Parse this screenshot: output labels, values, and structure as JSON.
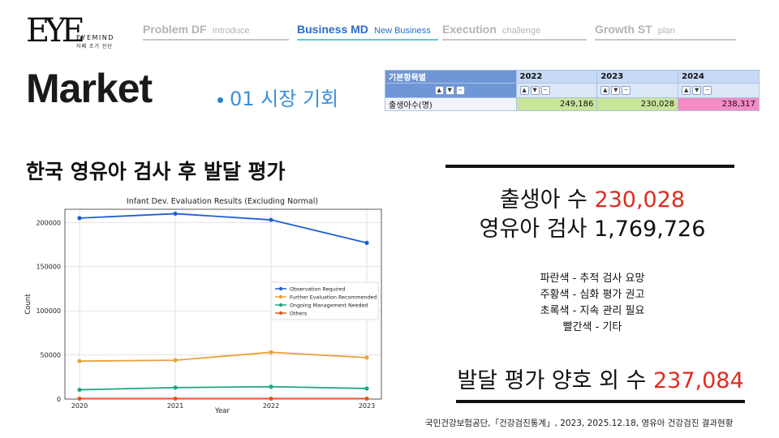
{
  "logo": {
    "mark": "EYE",
    "english": "EYEMIND",
    "korean": "자폐 조기 진단"
  },
  "nav": {
    "tabs": [
      {
        "main": "Problem DF",
        "sub": "Introduce",
        "active": false
      },
      {
        "main": "Business MD",
        "sub": "New Business",
        "active": true
      },
      {
        "main": "Execution",
        "sub": "challenge",
        "active": false
      },
      {
        "main": "Growth ST",
        "sub": "plan",
        "active": false
      }
    ]
  },
  "heading": {
    "title": "Market",
    "subtitle": "01 시장 기회"
  },
  "stats_table": {
    "header_label": "기본항목별",
    "years": [
      "2022",
      "2023",
      "2024"
    ],
    "row_label": "출생아수(명)",
    "values": [
      "249,186",
      "230,028",
      "238,317"
    ],
    "colors": {
      "header_first": "#6f96d6",
      "header": "#c7d9f4",
      "green": "#c9e59a",
      "pink": "#f58cc6"
    }
  },
  "left_title": "한국 영유아 검사 후 발달 평가",
  "right_panel": {
    "births_label": "출생아 수",
    "births_value": "230,028",
    "exams_label": "영유아 검사 1,769,726",
    "legend_lines": [
      "파란색 - 추적 검사 요망",
      "주황색 - 심화 평가 권고",
      "초록색 - 지속 관리 필요",
      "빨간색 - 기타"
    ],
    "abnormal_label": "발달 평가 양호 외 수",
    "abnormal_value": "237,084",
    "source": "국민건강보험공단,「건강검진통계」, 2023, 2025.12.18, 영유아 건강검진 결과현황",
    "accent_red": "#e02b20"
  },
  "chart_data": {
    "type": "line",
    "title": "Infant Dev. Evaluation Results (Excluding Normal)",
    "xlabel": "Year",
    "ylabel": "Count",
    "x": [
      "2020",
      "2021",
      "2022",
      "2023"
    ],
    "ylim": [
      0,
      215000
    ],
    "yticks": [
      0,
      50000,
      100000,
      150000,
      200000
    ],
    "grid": true,
    "legend": "center-right",
    "series": [
      {
        "name": "Observation Required",
        "color": "#1f5fd6",
        "values": [
          205000,
          210000,
          203000,
          177000
        ]
      },
      {
        "name": "Further Evaluation Recommended",
        "color": "#e8a23a",
        "values": [
          43000,
          44000,
          53000,
          47000
        ]
      },
      {
        "name": "Ongoing Management Needed",
        "color": "#1fa584",
        "values": [
          10500,
          13000,
          14000,
          12000
        ]
      },
      {
        "name": "Others",
        "color": "#e05a1c",
        "values": [
          500,
          500,
          500,
          500
        ]
      }
    ]
  }
}
